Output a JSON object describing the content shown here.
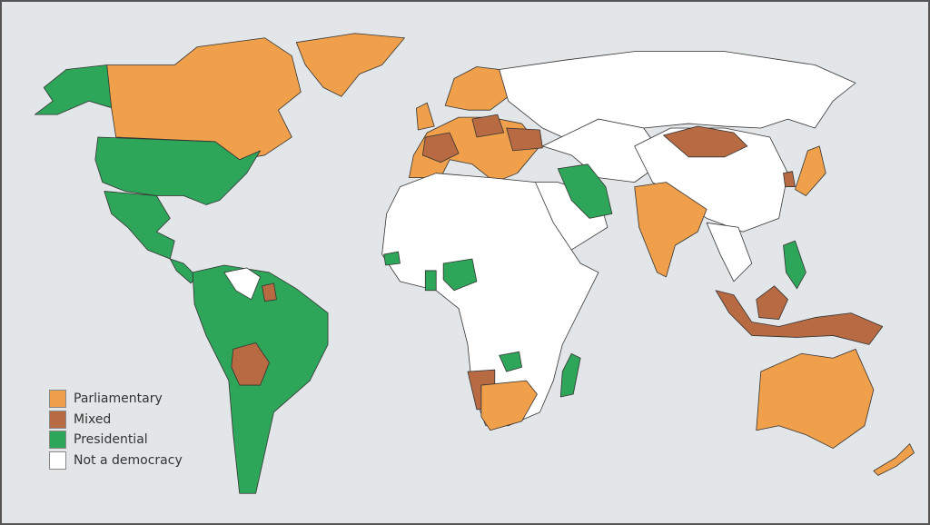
{
  "legend": {
    "items": [
      {
        "label": "Parliamentary",
        "color": "#f0a04b"
      },
      {
        "label": "Mixed",
        "color": "#b86b43"
      },
      {
        "label": "Presidential",
        "color": "#2ea65a"
      },
      {
        "label": "Not a democracy",
        "color": "#ffffff"
      }
    ]
  },
  "background_color": "#e3e6e8"
}
